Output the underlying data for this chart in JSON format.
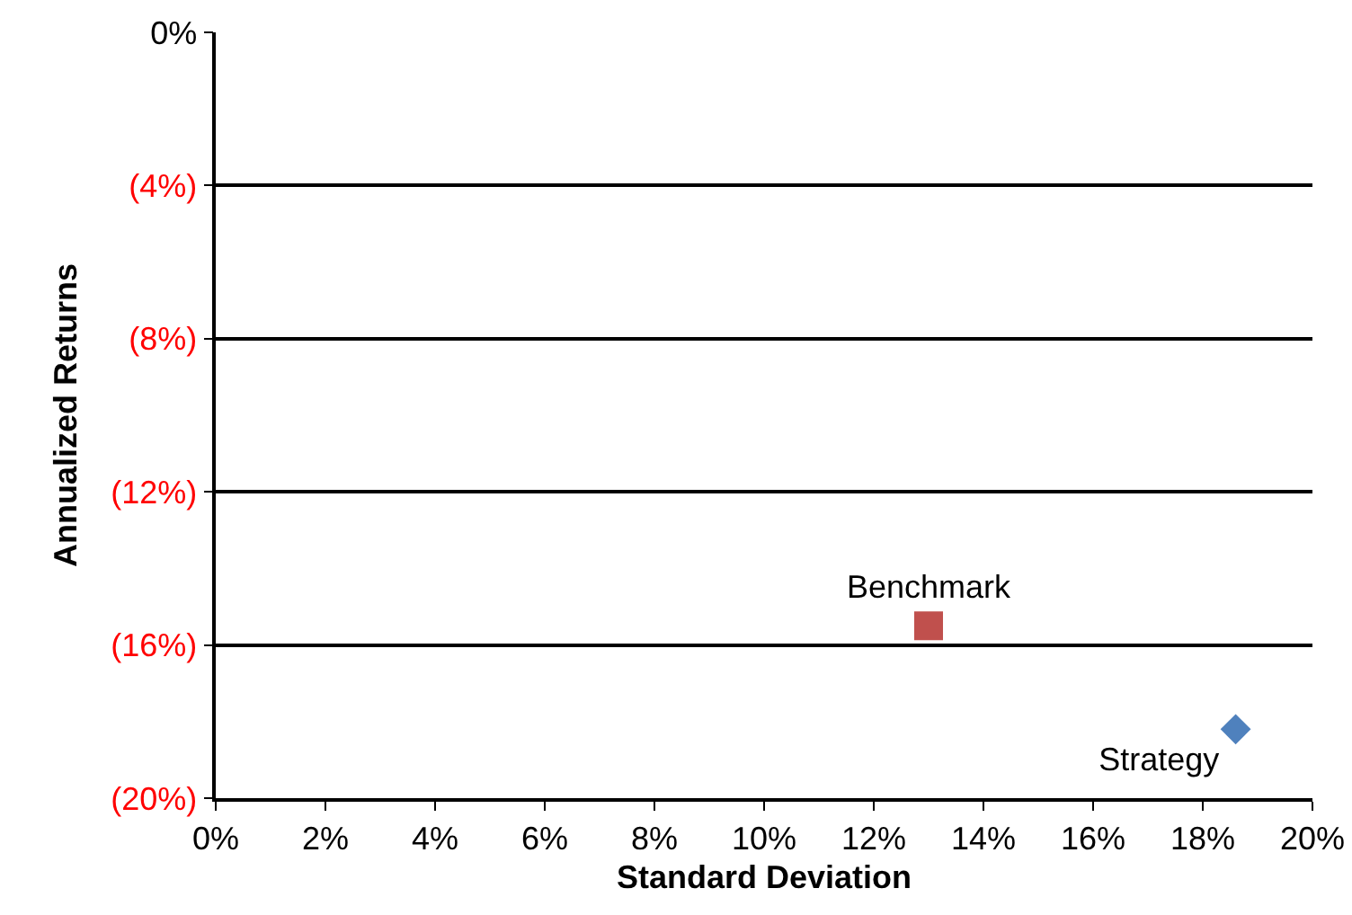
{
  "chart_data": {
    "type": "scatter",
    "xlabel": "Standard Deviation",
    "ylabel": "Annualized Returns",
    "series": [
      {
        "name": "Benchmark",
        "color": "#c0504d",
        "marker": "square",
        "x": [
          13.0
        ],
        "values": [
          -15.5
        ]
      },
      {
        "name": "Strategy",
        "color": "#4f81bd",
        "marker": "diamond",
        "x": [
          18.6
        ],
        "values": [
          -18.2
        ]
      }
    ],
    "xlim": [
      0,
      20
    ],
    "xticks": [
      {
        "value": 0,
        "label": "0%"
      },
      {
        "value": 2,
        "label": "2%"
      },
      {
        "value": 4,
        "label": "4%"
      },
      {
        "value": 6,
        "label": "6%"
      },
      {
        "value": 8,
        "label": "8%"
      },
      {
        "value": 10,
        "label": "10%"
      },
      {
        "value": 12,
        "label": "12%"
      },
      {
        "value": 14,
        "label": "14%"
      },
      {
        "value": 16,
        "label": "16%"
      },
      {
        "value": 18,
        "label": "18%"
      },
      {
        "value": 20,
        "label": "20%"
      }
    ],
    "ylim": [
      -20,
      0
    ],
    "yticks": [
      {
        "value": 0,
        "label": "0%"
      },
      {
        "value": -4,
        "label": "(4%)"
      },
      {
        "value": -8,
        "label": "(8%)"
      },
      {
        "value": -12,
        "label": "(12%)"
      },
      {
        "value": -16,
        "label": "(16%)"
      },
      {
        "value": -20,
        "label": "(20%)"
      }
    ],
    "grid": "y",
    "legend": false
  }
}
